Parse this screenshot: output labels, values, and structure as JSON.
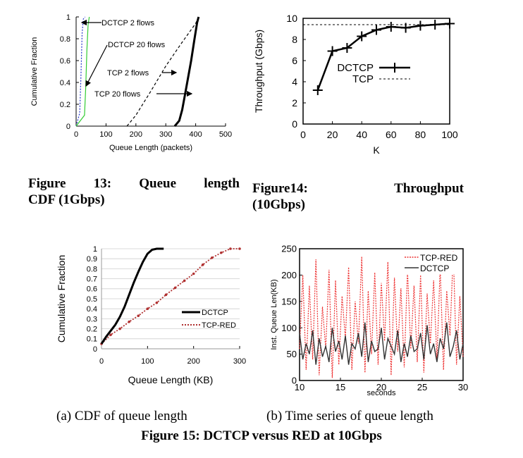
{
  "chart_data": [
    {
      "id": "fig13",
      "type": "line",
      "xlabel": "Queue Length (packets)",
      "ylabel": "Cumulative Fraction",
      "xlim": [
        0,
        500
      ],
      "ylim": [
        0,
        1
      ],
      "xticks": [
        0,
        100,
        200,
        300,
        400,
        500
      ],
      "yticks": [
        0,
        0.2,
        0.4,
        0.6,
        0.8,
        1
      ],
      "series": [
        {
          "name": "DCTCP 2 flows",
          "color": "#2233cc",
          "style": "dotted",
          "x": [
            0,
            12,
            16,
            20,
            24,
            30
          ],
          "y": [
            0,
            0.12,
            0.45,
            0.85,
            0.98,
            1
          ]
        },
        {
          "name": "DCTCP 20 flows",
          "color": "#33cc33",
          "style": "solid",
          "x": [
            0,
            28,
            32,
            36,
            40,
            44
          ],
          "y": [
            0,
            0.1,
            0.35,
            0.7,
            0.93,
            1
          ]
        },
        {
          "name": "TCP 2 flows",
          "color": "#000000",
          "style": "dashed",
          "x": [
            170,
            200,
            250,
            300,
            350,
            400,
            410
          ],
          "y": [
            0,
            0.1,
            0.32,
            0.55,
            0.75,
            0.94,
            1
          ]
        },
        {
          "name": "TCP 20 flows",
          "color": "#000000",
          "style": "thick",
          "x": [
            330,
            345,
            355,
            365,
            375,
            385,
            395,
            405,
            410
          ],
          "y": [
            0,
            0.05,
            0.15,
            0.3,
            0.45,
            0.6,
            0.78,
            0.95,
            1
          ]
        }
      ],
      "annotations": [
        "DCTCP 2 flows",
        "DCTCP 20 flows",
        "TCP 2 flows",
        "TCP 20 flows"
      ]
    },
    {
      "id": "fig14",
      "type": "line",
      "xlabel": "K",
      "ylabel": "Throughput (Gbps)",
      "xlim": [
        0,
        100
      ],
      "ylim": [
        0,
        10
      ],
      "xticks": [
        0,
        20,
        40,
        60,
        80,
        100
      ],
      "yticks": [
        0,
        2,
        4,
        6,
        8,
        10
      ],
      "series": [
        {
          "name": "DCTCP",
          "color": "#000000",
          "style": "solid-markers",
          "x": [
            10,
            20,
            30,
            40,
            50,
            60,
            70,
            80,
            90,
            100
          ],
          "y": [
            3.2,
            6.9,
            7.2,
            8.3,
            8.9,
            9.2,
            9.1,
            9.3,
            9.4,
            9.5
          ]
        },
        {
          "name": "TCP",
          "color": "#000000",
          "style": "dashed",
          "x": [
            0,
            100
          ],
          "y": [
            9.4,
            9.4
          ]
        }
      ]
    },
    {
      "id": "fig15a",
      "type": "line",
      "xlabel": "Queue Length (KB)",
      "ylabel": "Cumulative Fraction",
      "xlim": [
        0,
        300
      ],
      "ylim": [
        0,
        1
      ],
      "xticks": [
        0,
        100,
        200,
        300
      ],
      "yticks": [
        0,
        0.1,
        0.2,
        0.3,
        0.4,
        0.5,
        0.6,
        0.7,
        0.8,
        0.9,
        1
      ],
      "grid": true,
      "legend": "bottom-right",
      "series": [
        {
          "name": "DCTCP",
          "color": "#000000",
          "style": "thick",
          "x": [
            0,
            10,
            20,
            30,
            40,
            50,
            60,
            70,
            80,
            90,
            100,
            110,
            120,
            135
          ],
          "y": [
            0.05,
            0.12,
            0.18,
            0.24,
            0.32,
            0.42,
            0.54,
            0.66,
            0.77,
            0.87,
            0.95,
            0.99,
            1,
            1
          ]
        },
        {
          "name": "TCP-RED",
          "color": "#b03030",
          "style": "dotted-markers",
          "x": [
            0,
            20,
            40,
            60,
            80,
            100,
            120,
            140,
            160,
            180,
            200,
            220,
            240,
            260,
            280,
            300
          ],
          "y": [
            0.05,
            0.14,
            0.2,
            0.27,
            0.33,
            0.4,
            0.46,
            0.54,
            0.61,
            0.68,
            0.75,
            0.84,
            0.91,
            0.96,
            1,
            1
          ]
        }
      ]
    },
    {
      "id": "fig15b",
      "type": "line",
      "xlabel": "seconds",
      "ylabel": "Inst. Queue Len(KB)",
      "xlim": [
        10,
        30
      ],
      "ylim": [
        0,
        250
      ],
      "xticks": [
        10,
        15,
        20,
        25,
        30
      ],
      "yticks": [
        0,
        50,
        100,
        150,
        200,
        250
      ],
      "legend": "top-right",
      "series": [
        {
          "name": "TCP-RED",
          "color": "#ee3333",
          "style": "dotted",
          "x": [
            10,
            10.4,
            10.8,
            11.2,
            11.6,
            12,
            12.4,
            12.8,
            13.2,
            13.6,
            14,
            14.4,
            14.8,
            15.2,
            15.6,
            16,
            16.4,
            16.8,
            17.2,
            17.6,
            18,
            18.4,
            18.8,
            19.2,
            19.6,
            20,
            20.4,
            20.8,
            21.2,
            21.6,
            22,
            22.4,
            22.8,
            23.2,
            23.6,
            24,
            24.4,
            24.8,
            25.2,
            25.6,
            26,
            26.4,
            26.8,
            27.2,
            27.6,
            28,
            28.4,
            28.8,
            29.2,
            29.6,
            30
          ],
          "y": [
            60,
            200,
            20,
            180,
            40,
            230,
            10,
            140,
            60,
            210,
            5,
            190,
            30,
            160,
            80,
            215,
            20,
            150,
            70,
            235,
            15,
            170,
            50,
            205,
            30,
            185,
            75,
            225,
            10,
            195,
            55,
            175,
            25,
            210,
            60,
            180,
            35,
            200,
            15,
            165,
            70,
            190,
            40,
            215,
            20,
            170,
            85,
            245,
            30,
            160,
            45
          ]
        },
        {
          "name": "DCTCP",
          "color": "#333333",
          "style": "solid",
          "x": [
            10,
            10.4,
            10.8,
            11.2,
            11.6,
            12,
            12.4,
            12.8,
            13.2,
            13.6,
            14,
            14.4,
            14.8,
            15.2,
            15.6,
            16,
            16.4,
            16.8,
            17.2,
            17.6,
            18,
            18.4,
            18.8,
            19.2,
            19.6,
            20,
            20.4,
            20.8,
            21.2,
            21.6,
            22,
            22.4,
            22.8,
            23.2,
            23.6,
            24,
            24.4,
            24.8,
            25.2,
            25.6,
            26,
            26.4,
            26.8,
            27.2,
            27.6,
            28,
            28.4,
            28.8,
            29.2,
            29.6,
            30
          ],
          "y": [
            90,
            40,
            70,
            50,
            95,
            30,
            80,
            45,
            65,
            35,
            100,
            55,
            75,
            40,
            85,
            30,
            70,
            60,
            90,
            45,
            110,
            35,
            75,
            55,
            60,
            100,
            40,
            80,
            65,
            50,
            95,
            35,
            70,
            45,
            85,
            55,
            60,
            90,
            40,
            105,
            50,
            70,
            35,
            80,
            60,
            110,
            45,
            65,
            95,
            40,
            70
          ]
        }
      ]
    }
  ],
  "captions": {
    "fig13": "Figure 13: Queue length CDF (1Gbps)",
    "fig14": "Figure 14: Throughput (10Gbps)",
    "fig15a": "(a) CDF of queue length",
    "fig15b": "(b) Time series of queue length",
    "fig15": "Figure 15: DCTCP versus RED at 10Gbps"
  },
  "caption_lines": {
    "fig13_l1": [
      "Figure",
      "13:",
      "Queue",
      "length"
    ],
    "fig13_l2": "CDF (1Gbps)",
    "fig14_l1": [
      "Figure",
      "14:",
      "Throughput"
    ],
    "fig14_l2": "(10Gbps)"
  }
}
